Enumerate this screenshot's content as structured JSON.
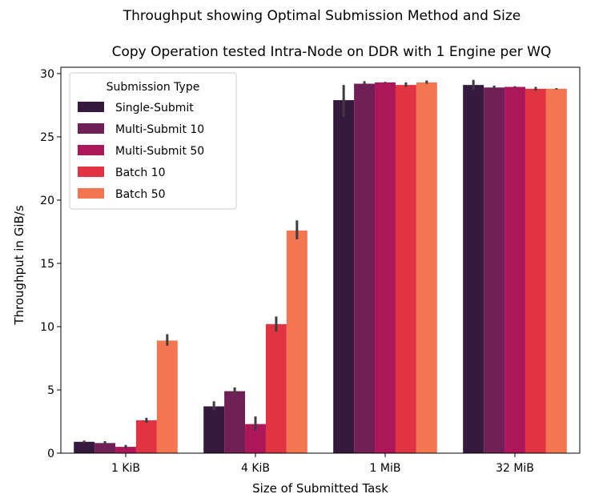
{
  "chart_data": {
    "type": "bar",
    "title": "Throughput showing Optimal Submission Method and Size",
    "subtitle": "Copy Operation tested Intra-Node on DDR with 1 Engine per WQ",
    "xlabel": "Size of Submitted Task",
    "ylabel": "Throughput in GiB/s",
    "categories": [
      "1 KiB",
      "4 KiB",
      "1 MiB",
      "32 MiB"
    ],
    "ylim": [
      0,
      30.5
    ],
    "yticks": [
      "0",
      "5",
      "10",
      "15",
      "20",
      "25",
      "30"
    ],
    "grid": false,
    "legend": {
      "title": "Submission Type",
      "placement": "top-left"
    },
    "series": [
      {
        "name": "Single-Submit",
        "color": "#35193e",
        "values": [
          0.9,
          3.7,
          27.9,
          29.1
        ],
        "errors": [
          [
            0.8,
            1.0
          ],
          [
            3.4,
            4.1
          ],
          [
            26.6,
            29.1
          ],
          [
            28.7,
            29.5
          ]
        ]
      },
      {
        "name": "Multi-Submit 10",
        "color": "#701f57",
        "values": [
          0.8,
          4.9,
          29.2,
          28.9
        ],
        "errors": [
          [
            0.7,
            0.95
          ],
          [
            4.7,
            5.2
          ],
          [
            29.1,
            29.4
          ],
          [
            28.85,
            29.05
          ]
        ]
      },
      {
        "name": "Multi-Submit 50",
        "color": "#ad1759",
        "values": [
          0.5,
          2.3,
          29.3,
          28.95
        ],
        "errors": [
          [
            0.35,
            0.65
          ],
          [
            1.8,
            2.9
          ],
          [
            29.25,
            29.35
          ],
          [
            28.9,
            29.0
          ]
        ]
      },
      {
        "name": "Batch 10",
        "color": "#e13342",
        "values": [
          2.6,
          10.2,
          29.1,
          28.8
        ],
        "errors": [
          [
            2.4,
            2.8
          ],
          [
            9.6,
            10.8
          ],
          [
            28.95,
            29.3
          ],
          [
            28.65,
            28.95
          ]
        ]
      },
      {
        "name": "Batch 50",
        "color": "#f37651",
        "values": [
          8.9,
          17.6,
          29.3,
          28.8
        ],
        "errors": [
          [
            8.5,
            9.4
          ],
          [
            16.9,
            18.4
          ],
          [
            29.2,
            29.45
          ],
          [
            28.75,
            28.85
          ]
        ]
      }
    ]
  }
}
